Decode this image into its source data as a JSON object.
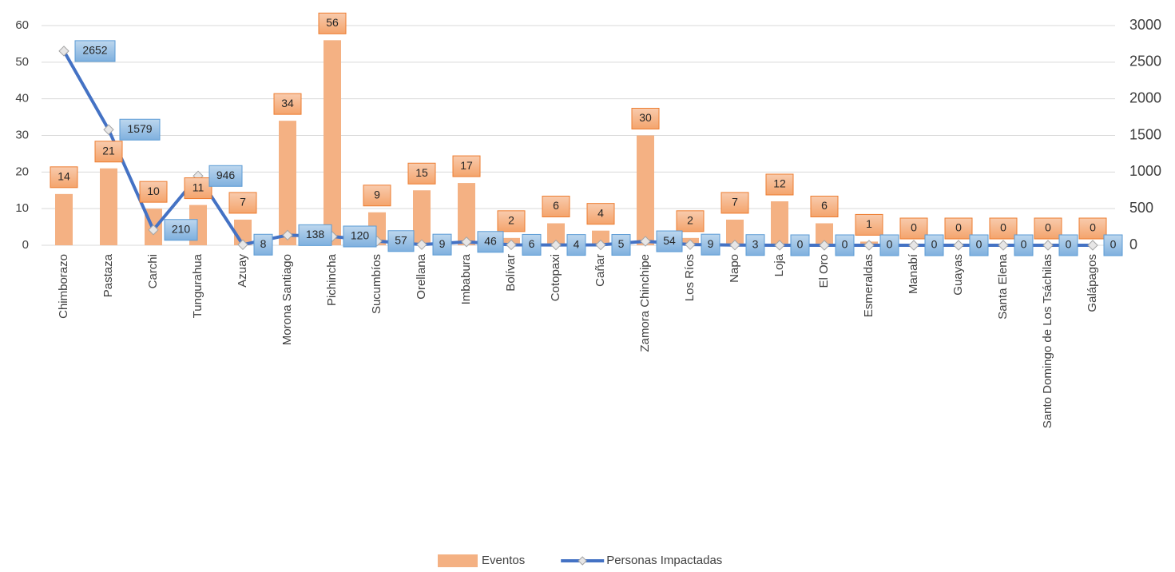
{
  "chart_data": {
    "type": "bar",
    "categories": [
      "Chimborazo",
      "Pastaza",
      "Carchi",
      "Tungurahua",
      "Azuay",
      "Morona Santiago",
      "Pichincha",
      "Sucumbíos",
      "Orellana",
      "Imbabura",
      "Bolívar",
      "Cotopaxi",
      "Cañar",
      "Zamora Chinchipe",
      "Los Ríos",
      "Napo",
      "Loja",
      "El Oro",
      "Esmeraldas",
      "Manabí",
      "Guayas",
      "Santa Elena",
      "Santo Domingo de Los Tsáchilas",
      "Galápagos"
    ],
    "series": [
      {
        "name": "Eventos",
        "color": "#f4b183",
        "values": [
          14,
          21,
          10,
          11,
          7,
          34,
          56,
          9,
          15,
          17,
          2,
          6,
          4,
          30,
          2,
          7,
          12,
          6,
          1,
          0,
          0,
          0,
          0,
          0
        ]
      },
      {
        "name": "Personas Impactadas",
        "type": "line",
        "axis": "y2",
        "color": "#4472c4",
        "values": [
          2652,
          1579,
          210,
          946,
          8,
          138,
          120,
          57,
          9,
          46,
          6,
          4,
          5,
          54,
          9,
          3,
          0,
          0,
          0,
          0,
          0,
          0,
          0,
          0
        ]
      }
    ],
    "ylim": [
      0,
      60
    ],
    "yticks": [
      0,
      10,
      20,
      30,
      40,
      50,
      60
    ],
    "y2lim": [
      0,
      3000
    ],
    "y2ticks": [
      0,
      500,
      1000,
      1500,
      2000,
      2500,
      3000
    ],
    "grid": true,
    "legend": "bottom"
  }
}
